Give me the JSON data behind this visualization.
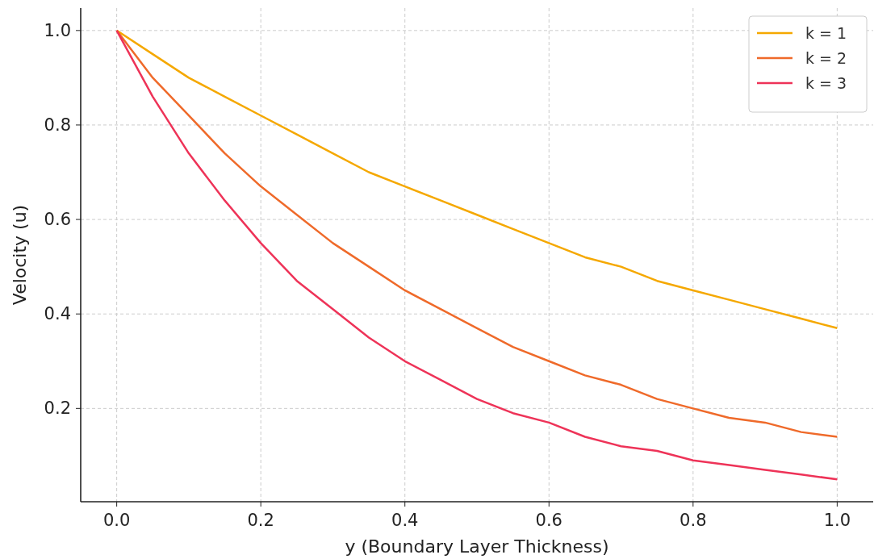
{
  "chart_data": {
    "type": "line",
    "xlabel": "y (Boundary Layer Thickness)",
    "ylabel": "Velocity (u)",
    "x": [
      0,
      0.05,
      0.1,
      0.15,
      0.2,
      0.25,
      0.3,
      0.35,
      0.4,
      0.45,
      0.5,
      0.55,
      0.6,
      0.65,
      0.7,
      0.75,
      0.8,
      0.85,
      0.9,
      0.95,
      1.0
    ],
    "series": [
      {
        "name": "k = 1",
        "color": "#f5a800",
        "values": [
          1,
          0.95,
          0.9,
          0.86,
          0.82,
          0.78,
          0.74,
          0.7,
          0.67,
          0.64,
          0.61,
          0.58,
          0.55,
          0.52,
          0.5,
          0.47,
          0.45,
          0.43,
          0.41,
          0.39,
          0.37
        ]
      },
      {
        "name": "k = 2",
        "color": "#ef6a2a",
        "values": [
          1,
          0.9,
          0.82,
          0.74,
          0.67,
          0.61,
          0.55,
          0.5,
          0.45,
          0.41,
          0.37,
          0.33,
          0.3,
          0.27,
          0.25,
          0.22,
          0.2,
          0.18,
          0.17,
          0.15,
          0.14
        ]
      },
      {
        "name": "k = 3",
        "color": "#ee3358",
        "values": [
          1,
          0.86,
          0.74,
          0.64,
          0.55,
          0.47,
          0.41,
          0.35,
          0.3,
          0.26,
          0.22,
          0.19,
          0.17,
          0.14,
          0.12,
          0.11,
          0.09,
          0.08,
          0.07,
          0.06,
          0.05
        ]
      }
    ],
    "xlim": [
      -0.05,
      1.05
    ],
    "ylim": [
      0.0025,
      1.0475
    ],
    "xticks": [
      {
        "value": 0,
        "label": "0.0"
      },
      0.2,
      0.4,
      0.6,
      0.8,
      {
        "value": 1,
        "label": "1.0"
      }
    ],
    "yticks": [
      0.2,
      0.4,
      0.6,
      0.8,
      {
        "value": 1,
        "label": "1.0"
      }
    ],
    "grid": true,
    "legend": "top right",
    "line_style": "solid",
    "marker": "none"
  }
}
